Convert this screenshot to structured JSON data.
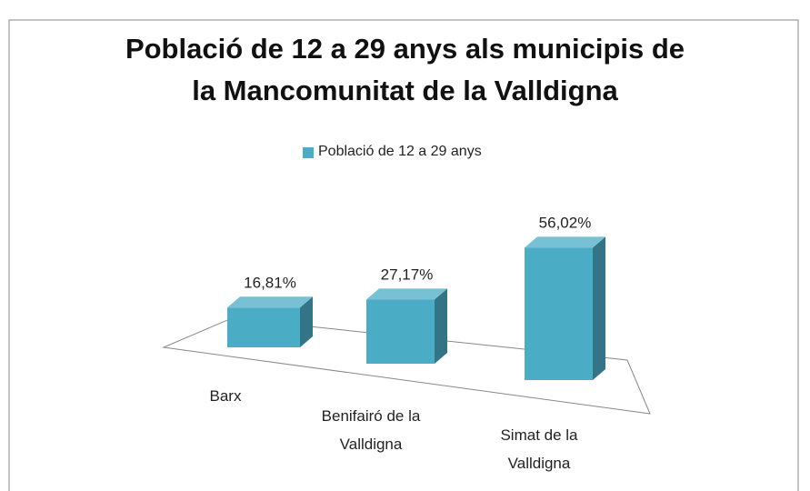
{
  "chart_data": {
    "type": "bar3d",
    "title": [
      "Població de 12 a 29 anys als municipis de",
      "la Mancomunitat de la Valldigna"
    ],
    "categories": [
      "Barx",
      "Benifairó de la Valldigna",
      "Simat de la Valldigna"
    ],
    "series": [
      {
        "name": "Població de 12 a 29 anys",
        "color": "#4bacc6",
        "values": [
          16.81,
          27.17,
          56.02
        ],
        "value_labels": [
          "16,81%",
          "27,17%",
          "56,02%"
        ]
      }
    ],
    "legend": "top"
  }
}
